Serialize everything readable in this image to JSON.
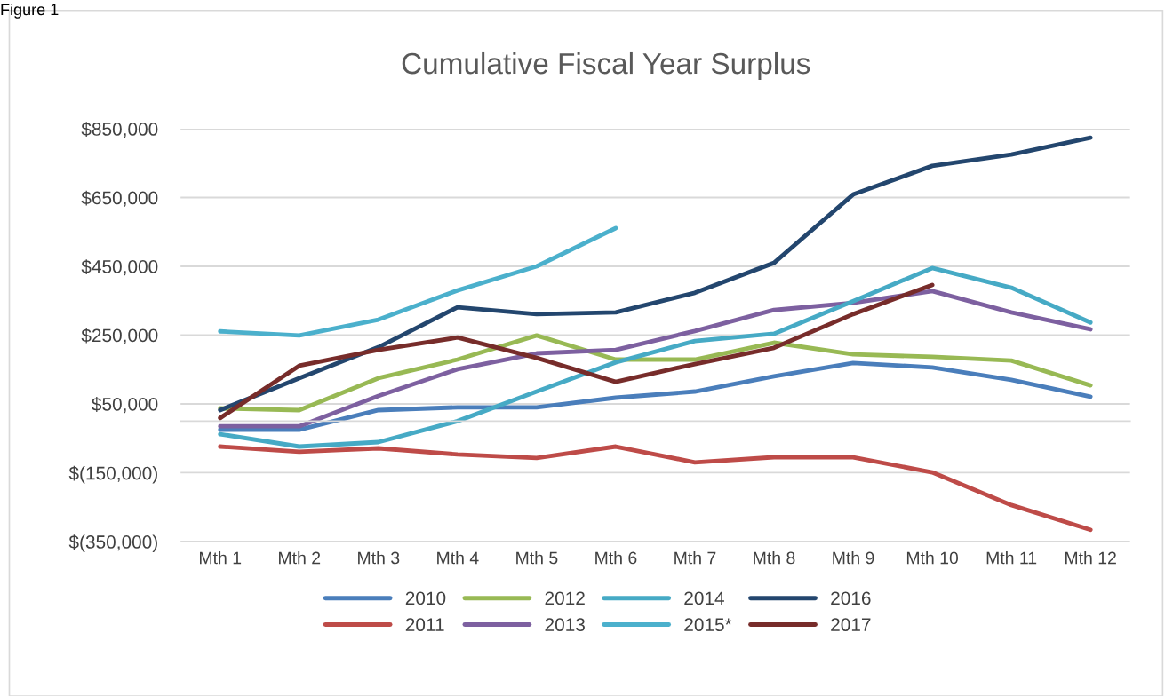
{
  "chart_data": {
    "type": "line",
    "title": "Cumulative Fiscal Year Surplus",
    "annotations": [
      "Figure 1"
    ],
    "categories": [
      "Mth 1",
      "Mth 2",
      "Mth 3",
      "Mth 4",
      "Mth 5",
      "Mth 6",
      "Mth 7",
      "Mth 8",
      "Mth 9",
      "Mth 10",
      "Mth 11",
      "Mth 12"
    ],
    "series": [
      {
        "name": "2010",
        "color": "#4a7ebb",
        "values": [
          -25000,
          -25000,
          32000,
          40000,
          40000,
          68000,
          86000,
          130000,
          169000,
          156000,
          120000,
          71000
        ]
      },
      {
        "name": "2011",
        "color": "#be4b48",
        "values": [
          -74000,
          -89000,
          -79000,
          -97000,
          -107000,
          -74000,
          -120000,
          -105000,
          -105000,
          -149000,
          -244000,
          -316000
        ]
      },
      {
        "name": "2012",
        "color": "#98b954",
        "values": [
          37000,
          32000,
          125000,
          179000,
          249000,
          179000,
          179000,
          228000,
          194000,
          187000,
          176000,
          104000
        ]
      },
      {
        "name": "2013",
        "color": "#7d60a0",
        "values": [
          -15000,
          -15000,
          73000,
          151000,
          197000,
          207000,
          262000,
          323000,
          344000,
          378000,
          316000,
          267000
        ]
      },
      {
        "name": "2014",
        "color": "#46aac5",
        "values": [
          -38000,
          -74000,
          -61000,
          0,
          86000,
          171000,
          233000,
          254000,
          349000,
          445000,
          388000,
          287000
        ]
      },
      {
        "name": "2015*",
        "color": "#4bb0cc",
        "values": [
          261000,
          249000,
          295000,
          380000,
          450000,
          561000,
          null,
          null,
          null,
          null,
          null,
          null
        ]
      },
      {
        "name": "2016",
        "color": "#23466e",
        "values": [
          32000,
          125000,
          215000,
          331000,
          311000,
          316000,
          373000,
          460000,
          659000,
          742000,
          775000,
          824000
        ]
      },
      {
        "name": "2017",
        "color": "#772c2a",
        "values": [
          9000,
          161000,
          207000,
          243000,
          184000,
          114000,
          166000,
          213000,
          311000,
          396000,
          null,
          null
        ]
      }
    ],
    "ylim": [
      -350000,
      850000
    ],
    "yticks": [
      {
        "value": -350000,
        "label": "$(350,000)"
      },
      {
        "value": -150000,
        "label": "$(150,000)"
      },
      {
        "value": 50000,
        "label": "$50,000"
      },
      {
        "value": 250000,
        "label": "$250,000"
      },
      {
        "value": 450000,
        "label": "$450,000"
      },
      {
        "value": 650000,
        "label": "$650,000"
      },
      {
        "value": 850000,
        "label": "$850,000"
      }
    ],
    "grid": "y",
    "legend": "bottom",
    "marker": "none",
    "line_style": "solid"
  }
}
